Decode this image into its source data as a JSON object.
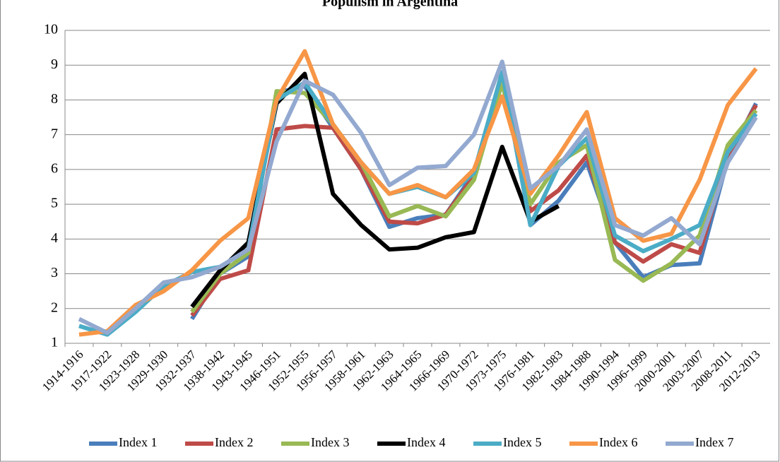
{
  "chart_data": {
    "type": "line",
    "title": "Populism in Argentina",
    "categories": [
      "1914-1916",
      "1917-1922",
      "1923-1928",
      "1929-1930",
      "1932-1937",
      "1938-1942",
      "1943-1945",
      "1946-1951",
      "1952-1955",
      "1956-1957",
      "1958-1961",
      "1962-1963",
      "1964-1965",
      "1966-1969",
      "1970-1972",
      "1973-1975",
      "1976-1981",
      "1982-1983",
      "1984-1988",
      "1990-1994",
      "1996-1999",
      "2000-2001",
      "2003-2007",
      "2008-2011",
      "2012-2013"
    ],
    "series": [
      {
        "name": "Index 1",
        "color": "#4a7ebb",
        "values": [
          null,
          null,
          null,
          null,
          1.7,
          3.0,
          3.5,
          8.2,
          8.4,
          7.2,
          6.0,
          4.35,
          4.6,
          4.7,
          5.9,
          8.8,
          4.4,
          5.1,
          6.2,
          3.9,
          2.9,
          3.25,
          3.3,
          6.3,
          7.9
        ]
      },
      {
        "name": "Index 2",
        "color": "#be4b48",
        "values": [
          null,
          null,
          null,
          null,
          1.8,
          2.85,
          3.1,
          7.15,
          7.25,
          7.2,
          6.0,
          4.5,
          4.45,
          4.7,
          5.8,
          8.7,
          4.8,
          5.4,
          6.4,
          3.9,
          3.35,
          3.85,
          3.6,
          6.4,
          7.85
        ]
      },
      {
        "name": "Index 3",
        "color": "#98b954",
        "values": [
          null,
          null,
          null,
          null,
          1.9,
          3.0,
          3.6,
          8.25,
          8.2,
          7.3,
          6.2,
          4.65,
          4.95,
          4.65,
          5.7,
          8.5,
          5.0,
          6.2,
          6.7,
          3.4,
          2.8,
          3.3,
          4.1,
          6.7,
          7.7
        ]
      },
      {
        "name": "Index 4",
        "color": "#000000",
        "values": [
          null,
          null,
          null,
          null,
          2.05,
          3.1,
          3.9,
          7.9,
          8.75,
          5.3,
          4.4,
          3.7,
          3.75,
          4.05,
          4.2,
          6.65,
          4.5,
          4.95,
          null,
          null,
          null,
          null,
          null,
          null,
          null
        ]
      },
      {
        "name": "Index 5",
        "color": "#4bacc6",
        "values": [
          1.5,
          1.25,
          1.9,
          2.65,
          3.05,
          3.2,
          3.7,
          8.0,
          8.5,
          7.3,
          6.2,
          5.3,
          5.5,
          5.2,
          5.9,
          8.8,
          4.4,
          6.1,
          6.9,
          4.1,
          3.65,
          4.0,
          4.4,
          6.5,
          7.6
        ]
      },
      {
        "name": "Index 6",
        "color": "#f79646",
        "values": [
          1.25,
          1.35,
          2.1,
          2.5,
          3.1,
          3.95,
          4.6,
          8.0,
          9.4,
          7.3,
          6.2,
          5.3,
          5.55,
          5.2,
          6.0,
          8.1,
          5.3,
          6.4,
          7.65,
          4.6,
          3.95,
          4.15,
          5.7,
          7.85,
          8.9
        ]
      },
      {
        "name": "Index 7",
        "color": "#93a9d0",
        "values": [
          1.7,
          1.3,
          2.0,
          2.75,
          2.9,
          3.2,
          3.7,
          6.8,
          8.55,
          8.15,
          7.05,
          5.55,
          6.05,
          6.1,
          7.0,
          9.1,
          5.45,
          6.1,
          7.15,
          4.4,
          4.1,
          4.6,
          3.85,
          6.2,
          7.5
        ]
      }
    ],
    "ylim": [
      1,
      10
    ],
    "yticks": [
      1,
      2,
      3,
      4,
      5,
      6,
      7,
      8,
      9,
      10
    ],
    "grid": true,
    "legend": "bottom"
  }
}
